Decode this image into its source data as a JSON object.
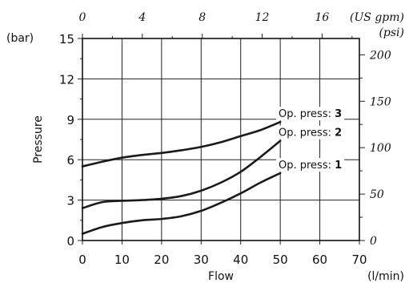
{
  "chart_data": {
    "type": "line",
    "xlabel": "Flow",
    "xunit": "(l/min)",
    "ylabel": "Pressure",
    "yunit": "(bar)",
    "xlim": [
      0,
      70
    ],
    "ylim": [
      0,
      15
    ],
    "x_ticks": [
      0,
      10,
      20,
      30,
      40,
      50,
      60,
      70
    ],
    "y_ticks": [
      0,
      3,
      6,
      9,
      12,
      15
    ],
    "grid": true,
    "secondary_x": {
      "unit": "(US gpm)",
      "ticks": [
        0,
        4,
        8,
        12,
        16
      ],
      "range": [
        0,
        18.49
      ]
    },
    "secondary_y": {
      "unit": "(psi)",
      "ticks": [
        0,
        50,
        100,
        150,
        200
      ],
      "range": [
        0,
        217.6
      ]
    },
    "series": [
      {
        "name": "Op. press:",
        "label_number": "3",
        "x": [
          0,
          5,
          10,
          15,
          20,
          25,
          30,
          35,
          40,
          45,
          50
        ],
        "y": [
          5.5,
          5.85,
          6.15,
          6.35,
          6.5,
          6.7,
          6.95,
          7.3,
          7.75,
          8.2,
          8.8
        ]
      },
      {
        "name": "Op. press:",
        "label_number": "2",
        "x": [
          0,
          5,
          10,
          15,
          20,
          25,
          30,
          35,
          40,
          45,
          50
        ],
        "y": [
          2.4,
          2.85,
          2.95,
          3.0,
          3.1,
          3.3,
          3.7,
          4.3,
          5.1,
          6.2,
          7.4
        ]
      },
      {
        "name": "Op. press:",
        "label_number": "1",
        "x": [
          0,
          5,
          10,
          15,
          20,
          25,
          30,
          35,
          40,
          45,
          50
        ],
        "y": [
          0.5,
          1.0,
          1.3,
          1.5,
          1.6,
          1.8,
          2.2,
          2.8,
          3.5,
          4.3,
          5.0
        ]
      }
    ]
  }
}
